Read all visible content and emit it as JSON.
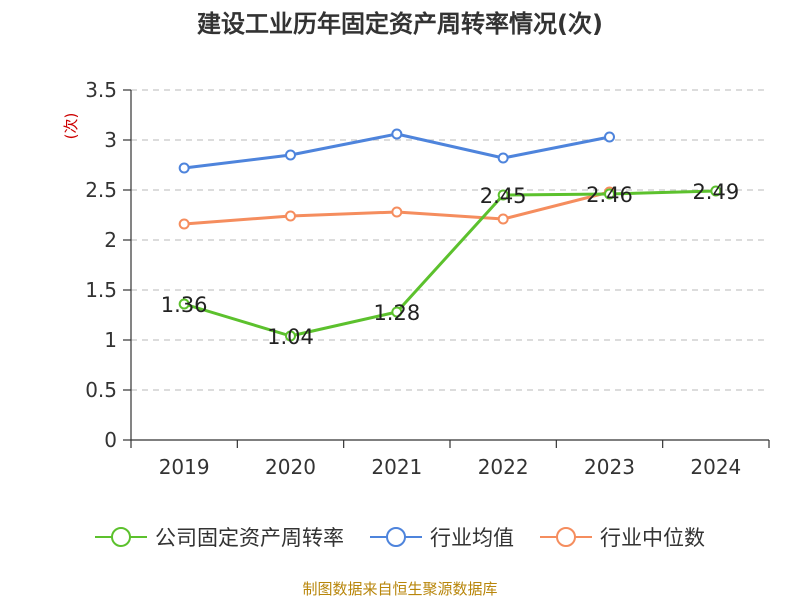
{
  "chart_data": {
    "type": "line",
    "title": "建设工业历年固定资产周转率情况(次)",
    "ylabel": "(次)",
    "xlabel": "",
    "categories": [
      "2019",
      "2020",
      "2021",
      "2022",
      "2023",
      "2024"
    ],
    "ylim": [
      0,
      3.5
    ],
    "yticks": [
      "0",
      "0.5",
      "1",
      "1.5",
      "2",
      "2.5",
      "3",
      "3.5"
    ],
    "series": [
      {
        "name": "公司固定资产周转率",
        "color": "#5cc12d",
        "values": [
          1.36,
          1.04,
          1.28,
          2.45,
          2.46,
          2.49
        ],
        "labels": [
          "1.36",
          "1.04",
          "1.28",
          "2.45",
          "2.46",
          "2.49"
        ]
      },
      {
        "name": "行业均值",
        "color": "#4e84dc",
        "values": [
          2.72,
          2.85,
          3.06,
          2.82,
          3.03,
          null
        ]
      },
      {
        "name": "行业中位数",
        "color": "#f58d5e",
        "values": [
          2.16,
          2.24,
          2.28,
          2.21,
          2.48,
          null
        ]
      }
    ],
    "grid": true,
    "legend": "bottom"
  },
  "footer": "制图数据来自恒生聚源数据库"
}
